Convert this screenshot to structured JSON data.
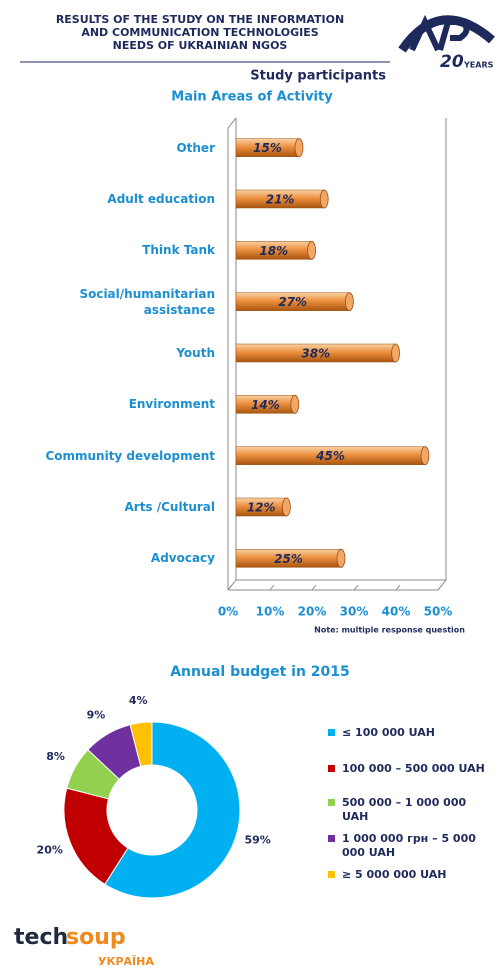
{
  "header": {
    "title_lines": [
      "RESULTS OF THE STUDY ON THE INFORMATION",
      "AND COMMUNICATION TECHNOLOGIES",
      "NEEDS OF UKRAINIAN NGOS"
    ],
    "section": "Study participants",
    "logo_number": "20",
    "logo_text": "YEARS"
  },
  "chart_data": [
    {
      "type": "bar",
      "orientation": "horizontal",
      "title": "Main Areas of Activity",
      "categories": [
        "Other",
        "Adult education",
        "Think Tank",
        "Social/humanitarian assistance",
        "Youth",
        "Environment",
        "Community development",
        "Arts /Cultural",
        "Advocacy"
      ],
      "values": [
        15,
        21,
        18,
        27,
        38,
        14,
        45,
        12,
        25
      ],
      "value_labels": [
        "15%",
        "21%",
        "18%",
        "27%",
        "38%",
        "14%",
        "45%",
        "12%",
        "25%"
      ],
      "color": "#e8822a",
      "xlim": [
        0,
        50
      ],
      "xticks": [
        {
          "value": 0,
          "label": "0%"
        },
        {
          "value": 10,
          "label": "10%"
        },
        {
          "value": 20,
          "label": "20%"
        },
        {
          "value": 30,
          "label": "30%"
        },
        {
          "value": 40,
          "label": "40%"
        },
        {
          "value": 50,
          "label": "50%"
        }
      ],
      "note": "Note: multiple response question"
    },
    {
      "type": "donut",
      "title": "Annual budget in 2015",
      "categories": [
        "≤ 100 000 UAH",
        "100 000 – 500 000 UAH",
        "500 000 – 1 000 000 UAH",
        "1 000 000 грн – 5 000 000 UAH",
        "≥ 5 000 000 UAH"
      ],
      "values": [
        59,
        20,
        8,
        9,
        4
      ],
      "value_labels": [
        "59%",
        "20%",
        "8%",
        "9%",
        "4%"
      ],
      "colors": [
        "#00b0f0",
        "#c00000",
        "#92d050",
        "#7030a0",
        "#ffc000"
      ],
      "legend": "right"
    }
  ],
  "footer": {
    "brand": [
      "tech",
      "soup"
    ],
    "country": "УКРАЇНА"
  }
}
